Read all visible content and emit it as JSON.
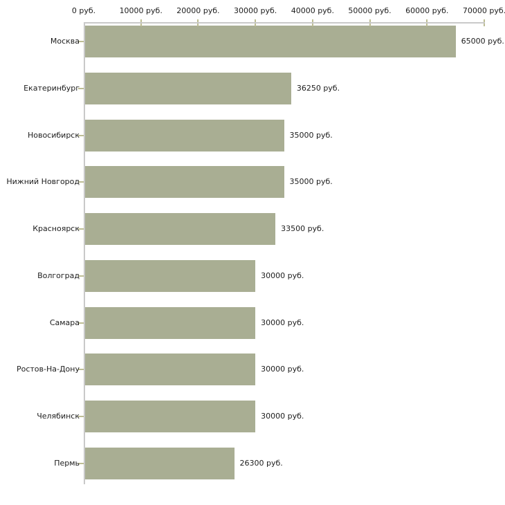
{
  "chart_data": {
    "type": "bar",
    "orientation": "horizontal",
    "title": "",
    "unit": "руб.",
    "categories": [
      "Москва",
      "Екатеринбург",
      "Новосибирск",
      "Нижний Новгород",
      "Красноярск",
      "Волгоград",
      "Самара",
      "Ростов-На-Дону",
      "Челябинск",
      "Пермь"
    ],
    "values": [
      65000,
      36250,
      35000,
      35000,
      33500,
      30000,
      30000,
      30000,
      30000,
      26300
    ],
    "value_labels": [
      "65000 руб.",
      "36250 руб.",
      "35000 руб.",
      "35000 руб.",
      "33500 руб.",
      "30000 руб.",
      "30000 руб.",
      "30000 руб.",
      "30000 руб.",
      "26300 руб."
    ],
    "x_axis": {
      "position": "top",
      "xlim": [
        0,
        70000
      ],
      "ticks": [
        0,
        10000,
        20000,
        30000,
        40000,
        50000,
        60000,
        70000
      ],
      "tick_labels": [
        "0 руб.",
        "10000 руб.",
        "20000 руб.",
        "30000 руб.",
        "40000 руб.",
        "50000 руб.",
        "60000 руб.",
        "70000 руб."
      ]
    },
    "ylabel": "",
    "xlabel": "",
    "grid": false,
    "legend": false,
    "colors": {
      "bar_fill": "#a9ae93",
      "axis_line": "#c9c9c9",
      "tick_mark": "#bdbd94",
      "text": "#1c1c1c",
      "background": "#ffffff"
    }
  }
}
